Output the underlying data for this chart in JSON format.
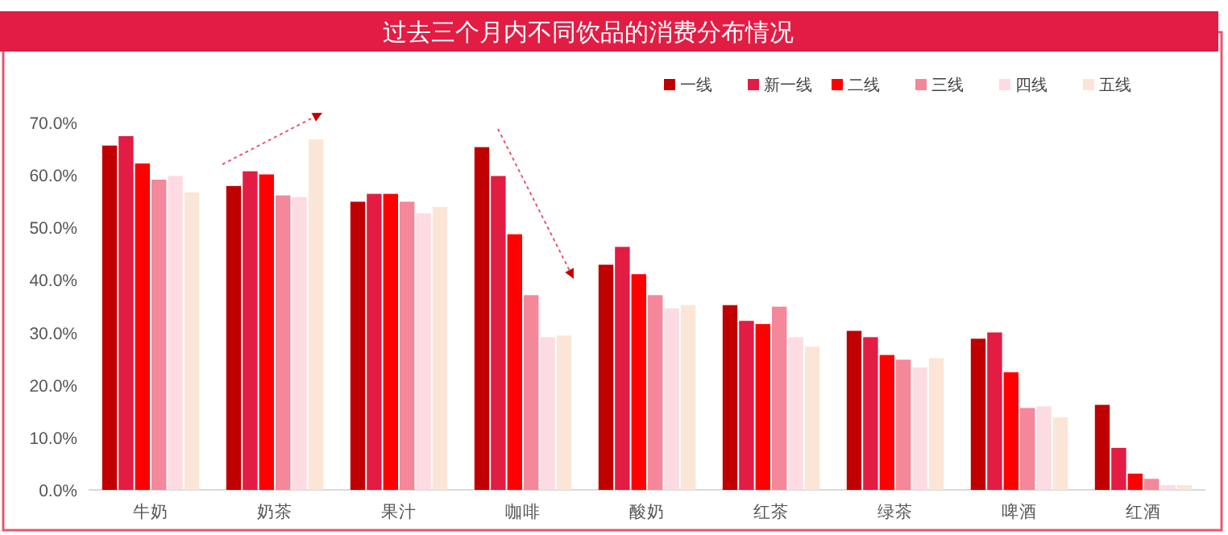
{
  "chart_data": {
    "type": "bar",
    "title": "过去三个月内不同饮品的消费分布情况",
    "categories": [
      "牛奶",
      "奶茶",
      "果汁",
      "咖啡",
      "酸奶",
      "红茶",
      "绿茶",
      "啤酒",
      "红酒"
    ],
    "series": [
      {
        "name": "一线",
        "color": "#c00000",
        "values": [
          65.6,
          57.9,
          54.9,
          65.3,
          42.9,
          35.2,
          30.3,
          28.8,
          16.2
        ]
      },
      {
        "name": "新一线",
        "color": "#e31c44",
        "values": [
          67.4,
          60.7,
          56.4,
          59.8,
          46.3,
          32.2,
          29.1,
          30.0,
          8.0
        ]
      },
      {
        "name": "二线",
        "color": "#ff0000",
        "values": [
          62.2,
          60.1,
          56.4,
          48.7,
          41.1,
          31.6,
          25.7,
          22.4,
          3.1
        ]
      },
      {
        "name": "三线",
        "color": "#f4879a",
        "values": [
          59.1,
          56.1,
          54.9,
          37.1,
          37.1,
          34.9,
          24.8,
          15.6,
          2.1
        ]
      },
      {
        "name": "四线",
        "color": "#fddbe2",
        "values": [
          59.8,
          55.8,
          52.7,
          29.1,
          34.6,
          29.1,
          23.3,
          15.9,
          0.9
        ]
      },
      {
        "name": "五线",
        "color": "#fbe5d6",
        "values": [
          56.7,
          66.8,
          53.9,
          29.4,
          35.2,
          27.3,
          25.1,
          13.8,
          0.9
        ]
      }
    ],
    "ylim": [
      0,
      70
    ],
    "yticks": [
      {
        "value": 0,
        "label": "0.0%"
      },
      {
        "value": 10,
        "label": "10.0%"
      },
      {
        "value": 20,
        "label": "20.0%"
      },
      {
        "value": 30,
        "label": "30.0%"
      },
      {
        "value": 40,
        "label": "40.0%"
      },
      {
        "value": 50,
        "label": "50.0%"
      },
      {
        "value": 60,
        "label": "60.0%"
      },
      {
        "value": 70,
        "label": "70.0%"
      }
    ],
    "grid": false,
    "legend": "top right"
  }
}
